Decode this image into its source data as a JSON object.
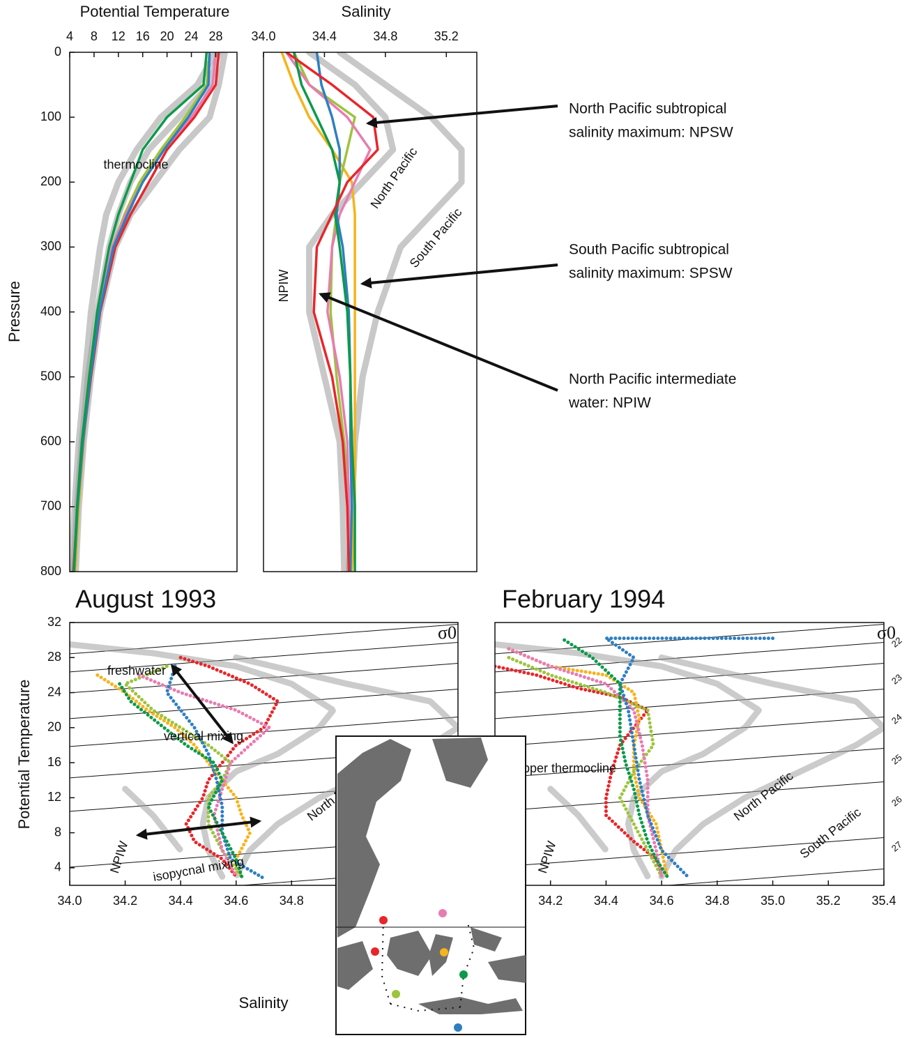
{
  "chart_data": [
    {
      "type": "line",
      "xlabel": "Potential Temperature",
      "ylabel": "Pressure",
      "xlim": [
        4,
        31.5
      ],
      "xticks": [
        4,
        8,
        12,
        16,
        20,
        24,
        28
      ],
      "ylim": [
        0,
        800
      ],
      "y_reversed": true,
      "yticks": [
        0,
        100,
        200,
        300,
        400,
        500,
        600,
        700,
        800
      ],
      "y": [
        0,
        50,
        100,
        150,
        200,
        250,
        300,
        400,
        500,
        600,
        700,
        800
      ],
      "annotations": [
        "thermocline"
      ],
      "series": [
        {
          "color": "#9a9a9a",
          "values": [
            28.5,
            27,
            22,
            17,
            14,
            12,
            10.5,
            8.5,
            7,
            6,
            5.2,
            4.6
          ]
        },
        {
          "color": "#9a9a9a",
          "values": [
            29.5,
            28.5,
            27,
            22,
            18,
            14,
            11.5,
            9,
            7.5,
            6.3,
            5.5,
            5
          ]
        },
        {
          "color": "#9a9a9a",
          "values": [
            28,
            25,
            19,
            15,
            12,
            10,
            9,
            7.5,
            6.5,
            5.5,
            4.8,
            4.3
          ]
        },
        {
          "color": "#e8262a",
          "values": [
            28.5,
            28,
            24.5,
            20,
            17,
            14,
            11.5,
            9,
            7.5,
            6.2,
            5.3,
            4.6
          ]
        },
        {
          "color": "#f6b31b",
          "values": [
            27,
            26.5,
            23,
            19,
            15.5,
            13,
            11,
            8.8,
            7.3,
            6.3,
            5.5,
            4.9
          ]
        },
        {
          "color": "#9cc43c",
          "values": [
            27,
            26.5,
            23,
            19,
            15.5,
            13,
            11,
            8.8,
            7.3,
            6.2,
            5.4,
            4.8
          ]
        },
        {
          "color": "#e87cb0",
          "values": [
            28,
            27.5,
            24,
            19.5,
            16,
            13.2,
            11,
            8.8,
            7.3,
            6.2,
            5.3,
            4.7
          ]
        },
        {
          "color": "#2f7fc1",
          "values": [
            27,
            26.8,
            23.5,
            19.5,
            16,
            13.5,
            11.2,
            8.9,
            7.4,
            6.2,
            5.3,
            4.7
          ]
        },
        {
          "color": "#0c9a4a",
          "values": [
            26.5,
            26,
            20,
            16,
            14,
            12,
            10.5,
            8.5,
            7.2,
            6,
            5.2,
            4.7
          ]
        }
      ]
    },
    {
      "type": "line",
      "xlabel": "Salinity",
      "xlim": [
        34.0,
        35.4
      ],
      "xticks": [
        {
          "value": 34.0,
          "label": "34.0"
        },
        34.4,
        34.8,
        35.2
      ],
      "ylim": [
        0,
        800
      ],
      "y_reversed": true,
      "y": [
        0,
        50,
        100,
        150,
        200,
        250,
        300,
        400,
        500,
        600,
        700,
        800
      ],
      "annotations": [
        "North Pacific",
        "South Pacific",
        "NPIW"
      ],
      "callouts": [
        [
          "North Pacific subtropical",
          "salinity maximum: NPSW"
        ],
        [
          "South Pacific subtropical",
          "salinity maximum: SPSW"
        ],
        [
          "North Pacific intermediate",
          "water: NPIW"
        ]
      ],
      "series": [
        {
          "color": "#9a9a9a",
          "values": [
            34.3,
            34.6,
            34.8,
            34.85,
            34.65,
            34.45,
            34.3,
            34.3,
            34.4,
            34.5,
            34.52,
            34.53
          ]
        },
        {
          "color": "#9a9a9a",
          "values": [
            34.5,
            34.8,
            35.1,
            35.3,
            35.3,
            35.1,
            34.9,
            34.75,
            34.65,
            34.6,
            34.58,
            34.56
          ]
        },
        {
          "color": "#f6b31b",
          "values": [
            34.12,
            34.2,
            34.3,
            34.45,
            34.58,
            34.6,
            34.6,
            34.6,
            34.6,
            34.6,
            34.6,
            34.58
          ]
        },
        {
          "color": "#9cc43c",
          "values": [
            34.2,
            34.3,
            34.6,
            34.55,
            34.5,
            34.48,
            34.45,
            34.44,
            34.48,
            34.53,
            34.56,
            34.57
          ]
        },
        {
          "color": "#e87cb0",
          "values": [
            34.15,
            34.3,
            34.55,
            34.7,
            34.6,
            34.5,
            34.45,
            34.42,
            34.5,
            34.55,
            34.56,
            34.56
          ]
        },
        {
          "color": "#2f7fc1",
          "values": [
            34.35,
            34.38,
            34.45,
            34.5,
            34.5,
            34.48,
            34.52,
            34.56,
            34.57,
            34.57,
            34.58,
            34.57
          ]
        },
        {
          "color": "#0c9a4a",
          "values": [
            34.2,
            34.25,
            34.35,
            34.45,
            34.5,
            34.47,
            34.5,
            34.55,
            34.57,
            34.58,
            34.6,
            34.6
          ]
        },
        {
          "color": "#e8262a",
          "values": [
            34.15,
            34.45,
            34.72,
            34.75,
            34.55,
            34.45,
            34.35,
            34.33,
            34.45,
            34.52,
            34.55,
            34.56
          ]
        }
      ]
    },
    {
      "type": "scatter",
      "title": "August 1993",
      "xlabel": "Salinity",
      "ylabel": "Potential Temperature",
      "sigma_symbol": "σ0",
      "xlim": [
        34.0,
        35.4
      ],
      "xticks": [
        {
          "value": 34.0,
          "label": "34.0"
        },
        34.2,
        34.4,
        34.6,
        34.8
      ],
      "ylim": [
        2,
        32
      ],
      "yticks": [
        4,
        8,
        12,
        16,
        20,
        24,
        28,
        32
      ],
      "annotations": [
        "freshwater",
        "vertical mixing",
        "North Pacific",
        "South Pacific",
        "NPIW",
        "isopycnal mixing"
      ],
      "series": [
        {
          "color": "#a0a0a0",
          "x": [
            34.0,
            34.3,
            34.6,
            34.8,
            34.95,
            34.9,
            34.75,
            34.6,
            34.5,
            34.48,
            34.5,
            34.55
          ],
          "values": [
            29.5,
            28.5,
            27,
            25,
            22,
            20,
            17,
            15,
            12,
            9,
            6,
            3
          ]
        },
        {
          "color": "#a0a0a0",
          "x": [
            34.6,
            35.0,
            35.3,
            35.4,
            35.3,
            35.1,
            34.9,
            34.75,
            34.65,
            34.6
          ],
          "values": [
            28,
            25,
            23,
            20,
            18,
            15,
            12,
            9,
            6,
            3
          ]
        },
        {
          "color": "#a0a0a0",
          "x": [
            34.2,
            34.3,
            34.35,
            34.4
          ],
          "values": [
            13,
            10,
            8,
            6
          ]
        },
        {
          "color": "#e8262a",
          "x": [
            34.4,
            34.5,
            34.65,
            34.75,
            34.7,
            34.6,
            34.55,
            34.5,
            34.48,
            34.42,
            34.45,
            34.55,
            34.6
          ],
          "values": [
            28,
            27,
            25,
            23,
            20,
            18,
            16,
            14,
            12,
            9,
            7,
            5,
            3
          ]
        },
        {
          "color": "#f6b31b",
          "x": [
            34.1,
            34.2,
            34.28,
            34.38,
            34.45,
            34.5,
            34.55,
            34.6,
            34.62,
            34.65,
            34.6,
            34.6
          ],
          "values": [
            26,
            24,
            22,
            20,
            18,
            16,
            14,
            12,
            10,
            8,
            5,
            3
          ]
        },
        {
          "color": "#9cc43c",
          "x": [
            34.35,
            34.2,
            34.3,
            34.4,
            34.5,
            34.58,
            34.55,
            34.5,
            34.5,
            34.55,
            34.62
          ],
          "values": [
            27,
            25,
            22,
            20,
            18,
            16,
            14,
            12,
            9,
            6,
            3
          ]
        },
        {
          "color": "#e87cb0",
          "x": [
            34.25,
            34.4,
            34.6,
            34.72,
            34.65,
            34.58,
            34.55,
            34.52,
            34.55,
            34.6
          ],
          "values": [
            26,
            24,
            22,
            20,
            18,
            16,
            13,
            10,
            6,
            3
          ]
        },
        {
          "color": "#2f7fc1",
          "x": [
            34.38,
            34.35,
            34.45,
            34.5,
            34.53,
            34.55,
            34.55,
            34.58,
            34.7
          ],
          "values": [
            27,
            24,
            20,
            17,
            14,
            11,
            8,
            5,
            2.8
          ]
        },
        {
          "color": "#0c9a4a",
          "x": [
            34.18,
            34.22,
            34.3,
            34.42,
            34.52,
            34.55,
            34.5,
            34.55,
            34.6,
            34.62
          ],
          "values": [
            25,
            23,
            21,
            18,
            16,
            14,
            11,
            8,
            5,
            3
          ]
        }
      ]
    },
    {
      "type": "scatter",
      "title": "February 1994",
      "sigma_symbol": "σ0",
      "sigma_labels": [
        "22",
        "23",
        "24",
        "25",
        "26",
        "27"
      ],
      "xlim": [
        34.0,
        35.4
      ],
      "xticks": [
        34.2,
        34.4,
        34.6,
        34.8,
        {
          "value": 35.0,
          "label": "35.0"
        },
        35.2,
        35.4
      ],
      "ylim": [
        2,
        32
      ],
      "annotations": [
        "upper thermocline",
        "North Pacific",
        "South Pacific",
        "NPIW"
      ],
      "series": [
        {
          "color": "#a0a0a0",
          "x": [
            34.0,
            34.3,
            34.6,
            34.8,
            34.95,
            34.9,
            34.75,
            34.6,
            34.5,
            34.48,
            34.5,
            34.55
          ],
          "values": [
            29.5,
            28.5,
            27,
            25,
            22,
            20,
            17,
            15,
            12,
            9,
            6,
            3
          ]
        },
        {
          "color": "#a0a0a0",
          "x": [
            34.6,
            35.0,
            35.3,
            35.4,
            35.3,
            35.1,
            34.9,
            34.75,
            34.65,
            34.6
          ],
          "values": [
            28,
            25,
            23,
            20,
            18,
            15,
            12,
            9,
            6,
            3
          ]
        },
        {
          "color": "#a0a0a0",
          "x": [
            34.2,
            34.3,
            34.35,
            34.4
          ],
          "values": [
            13,
            10,
            8,
            6
          ]
        },
        {
          "color": "#e8262a",
          "x": [
            34.0,
            34.15,
            34.3,
            34.45,
            34.55,
            34.5,
            34.45,
            34.42,
            34.4,
            34.4,
            34.5,
            34.58,
            34.6
          ],
          "values": [
            27,
            26,
            24.5,
            23.5,
            22,
            20,
            18,
            15,
            12,
            10,
            7,
            5,
            3
          ]
        },
        {
          "color": "#f6b31b",
          "x": [
            34.05,
            34.2,
            34.4,
            34.5,
            34.52,
            34.5,
            34.5,
            34.52,
            34.58,
            34.6,
            34.62
          ],
          "values": [
            29,
            27,
            26,
            24,
            21,
            18,
            15,
            12,
            9,
            6,
            3
          ]
        },
        {
          "color": "#9cc43c",
          "x": [
            34.05,
            34.2,
            34.4,
            34.55,
            34.57,
            34.5,
            34.45,
            34.5,
            34.55,
            34.6
          ],
          "values": [
            28,
            26,
            24,
            22,
            18,
            15,
            12,
            9,
            6,
            3
          ]
        },
        {
          "color": "#e87cb0",
          "x": [
            34.05,
            34.2,
            34.4,
            34.5,
            34.53,
            34.55,
            34.55,
            34.58,
            34.6
          ],
          "values": [
            29,
            27,
            25,
            22,
            18,
            14,
            10,
            6,
            3
          ]
        },
        {
          "color": "#2f7fc1",
          "x": [
            35.0,
            34.7,
            34.4,
            34.5,
            34.45,
            34.48,
            34.5,
            34.52,
            34.55,
            34.6,
            34.7
          ],
          "values": [
            30.2,
            30.2,
            30.2,
            28,
            25,
            22,
            18,
            14,
            10,
            6,
            2.8
          ]
        },
        {
          "color": "#0c9a4a",
          "x": [
            34.25,
            34.35,
            34.45,
            34.45,
            34.45,
            34.47,
            34.5,
            34.52,
            34.55,
            34.58,
            34.62
          ],
          "values": [
            30,
            28,
            25,
            22,
            19,
            16,
            13,
            10,
            7,
            5,
            3
          ]
        }
      ]
    }
  ]
}
